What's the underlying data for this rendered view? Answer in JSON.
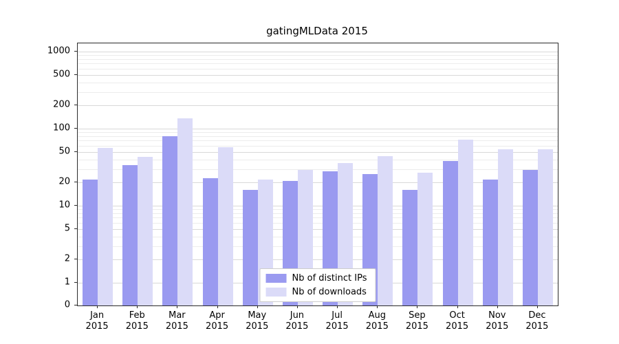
{
  "chart_data": {
    "type": "bar",
    "title": "gatingMLData 2015",
    "categories": [
      "Jan 2015",
      "Feb 2015",
      "Mar 2015",
      "Apr 2015",
      "May 2015",
      "Jun 2015",
      "Jul 2015",
      "Aug 2015",
      "Sep 2015",
      "Oct 2015",
      "Nov 2015",
      "Dec 2015"
    ],
    "series": [
      {
        "name": "Nb of distinct IPs",
        "color": "#9a9af0",
        "values": [
          22,
          34,
          80,
          23,
          16,
          21,
          28,
          26,
          16,
          38,
          22,
          29
        ]
      },
      {
        "name": "Nb of downloads",
        "color": "#dbdbf8",
        "values": [
          56,
          43,
          135,
          57,
          22,
          29,
          36,
          44,
          27,
          72,
          54,
          54
        ]
      }
    ],
    "yscale": "symlog",
    "yticks": [
      0,
      1,
      2,
      5,
      10,
      20,
      50,
      100,
      200,
      500,
      1000
    ],
    "ylim": [
      0,
      1300
    ],
    "xlabel": "",
    "ylabel": "",
    "grid": true,
    "legend_position": "lower center"
  }
}
